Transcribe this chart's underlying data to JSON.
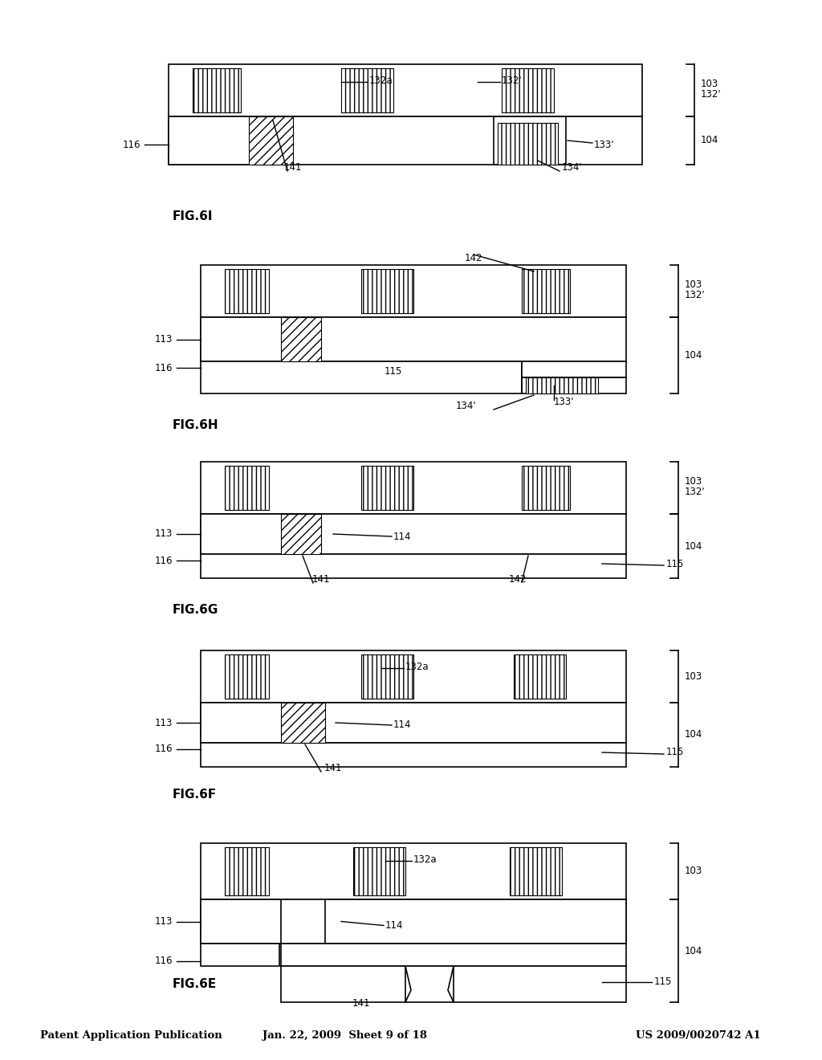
{
  "title_left": "Patent Application Publication",
  "title_mid": "Jan. 22, 2009  Sheet 9 of 18",
  "title_right": "US 2009/0020742 A1",
  "background": "#ffffff",
  "line_color": "#000000",
  "figures": [
    "FIG.6E",
    "FIG.6F",
    "FIG.6G",
    "FIG.6H",
    "FIG.6I"
  ]
}
